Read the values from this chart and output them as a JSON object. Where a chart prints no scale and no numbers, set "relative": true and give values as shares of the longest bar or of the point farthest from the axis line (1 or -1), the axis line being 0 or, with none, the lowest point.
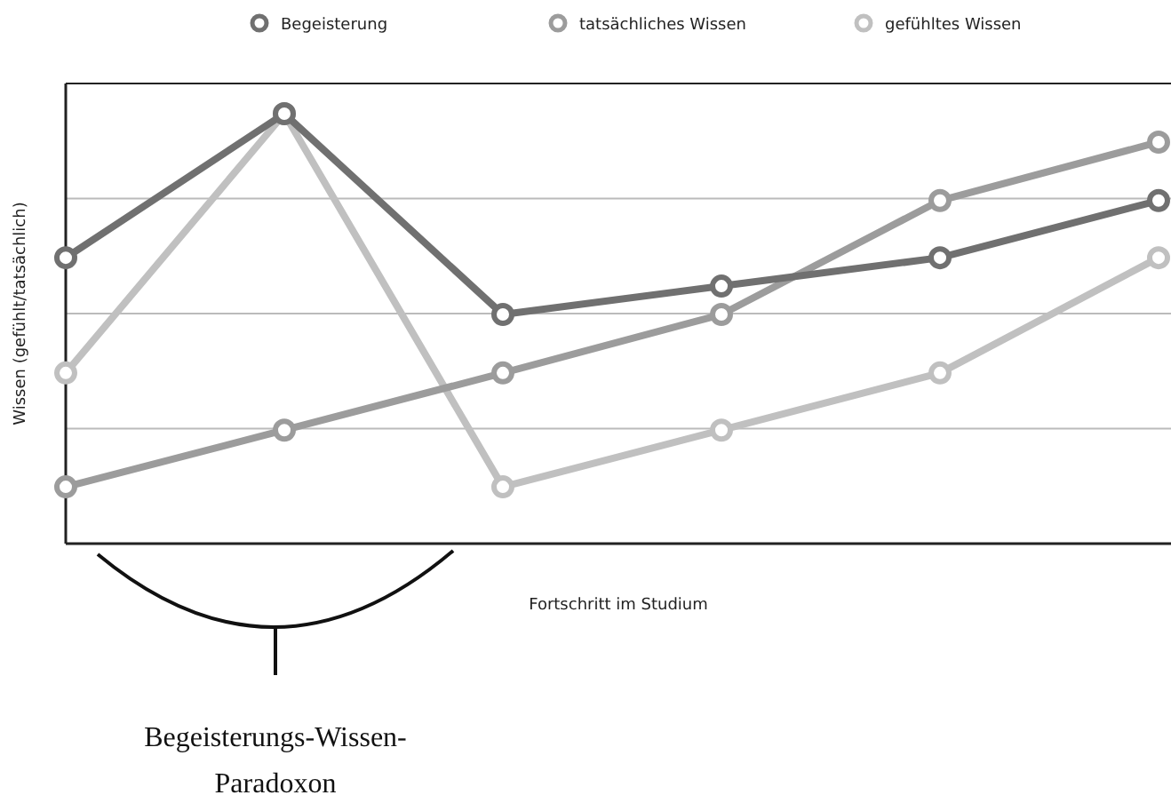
{
  "chart_data": {
    "type": "line",
    "relative": true,
    "xlabel": "Fortschritt im Studium",
    "ylabel": "Wissen (gefühlt/tatsächlich)",
    "categories": [
      null,
      null,
      null,
      null,
      null,
      null
    ],
    "series": [
      {
        "name": "Begeisterung",
        "color": "#707070",
        "values": [
          0.665,
          1,
          0.533,
          0.599,
          0.665,
          0.798
        ]
      },
      {
        "name": "tatsächliches Wissen",
        "color": "#9c9c9c",
        "values": [
          0.132,
          0.264,
          0.397,
          0.533,
          0.798,
          0.934
        ]
      },
      {
        "name": "gefühltes Wissen",
        "color": "#c0c0c0",
        "values": [
          0.397,
          1,
          0.132,
          0.264,
          0.397,
          0.665
        ]
      }
    ],
    "annotations": [
      "Begeisterungs-Wissen-Paradoxon"
    ],
    "grid": "y",
    "legend": "top",
    "marker": "circle",
    "line_style": "solid"
  }
}
